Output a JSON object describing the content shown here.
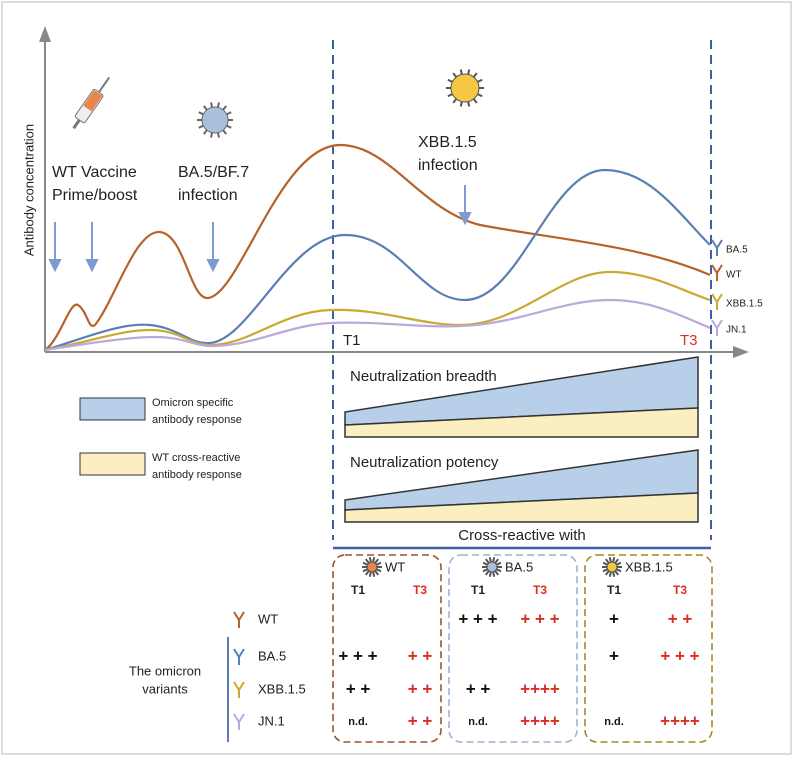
{
  "axis_label": "Antibody concentration",
  "events": [
    {
      "lines": [
        "WT Vaccine",
        "Prime/boost"
      ]
    },
    {
      "lines": [
        "BA.5/BF.7",
        "infection"
      ]
    },
    {
      "lines": [
        "XBB.1.5",
        "infection"
      ]
    }
  ],
  "timepoints": [
    "T1",
    "T3"
  ],
  "curve_labels": [
    "BA.5",
    "WT",
    "XBB.1.5",
    "JN.1"
  ],
  "legend": [
    {
      "lines": [
        "Omicron specific",
        "antibody response"
      ]
    },
    {
      "lines": [
        "WT cross-reactive",
        "antibody response"
      ]
    }
  ],
  "panels": [
    "Neutralization breadth",
    "Neutralization potency"
  ],
  "table": {
    "title": "Cross-reactive with",
    "group_label": [
      "The omicron",
      "variants"
    ],
    "columns": [
      {
        "name": "WT",
        "t1": "T1",
        "t3": "T3"
      },
      {
        "name": "BA.5",
        "t1": "T1",
        "t3": "T3"
      },
      {
        "name": "XBB.1.5",
        "t1": "T1",
        "t3": "T3"
      }
    ],
    "rows": [
      {
        "label": "WT",
        "cells": [
          [
            null,
            null
          ],
          [
            "+ + +",
            "+ + +"
          ],
          [
            "+",
            "+ +"
          ]
        ]
      },
      {
        "label": "BA.5",
        "cells": [
          [
            "+ + +",
            "+ +"
          ],
          [
            null,
            null
          ],
          [
            "+",
            "+ + +"
          ]
        ]
      },
      {
        "label": "XBB.1.5",
        "cells": [
          [
            "+ +",
            "+ +"
          ],
          [
            "+ +",
            "++++"
          ],
          [
            null,
            null
          ]
        ]
      },
      {
        "label": "JN.1",
        "cells": [
          [
            "n.d.",
            "+ +"
          ],
          [
            "n.d.",
            "++++"
          ],
          [
            "n.d.",
            "++++"
          ]
        ]
      }
    ]
  }
}
